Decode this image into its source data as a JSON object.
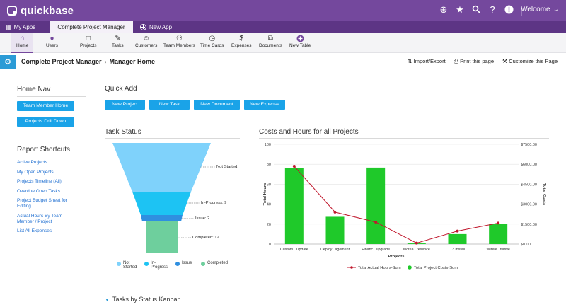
{
  "app": {
    "logo_text": "quickbase",
    "welcome": "Welcome"
  },
  "tabs": {
    "myapps": "My Apps",
    "active": "Complete Project Manager",
    "newapp": "New App"
  },
  "nav": [
    {
      "label": "Home",
      "icon": "home-icon"
    },
    {
      "label": "Users",
      "icon": "users-icon"
    },
    {
      "label": "Projects",
      "icon": "folder-icon"
    },
    {
      "label": "Tasks",
      "icon": "tasks-icon"
    },
    {
      "label": "Customers",
      "icon": "smile-icon"
    },
    {
      "label": "Team Members",
      "icon": "team-icon"
    },
    {
      "label": "Time Cards",
      "icon": "timecard-icon"
    },
    {
      "label": "Expenses",
      "icon": "dollar-icon"
    },
    {
      "label": "Documents",
      "icon": "documents-icon"
    },
    {
      "label": "New Table",
      "icon": "plus-icon"
    }
  ],
  "titlebar": {
    "app": "Complete Project Manager",
    "page": "Manager Home",
    "import_export": "Import/Export",
    "print": "Print this page",
    "customize": "Customize this Page"
  },
  "home_nav": {
    "title": "Home Nav",
    "buttons": [
      "Team Member Home",
      "Projects Drill Down"
    ]
  },
  "report_shortcuts": {
    "title": "Report Shortcuts",
    "links": [
      "Active Projects",
      "My Open Projects",
      "Projects Timeline (All)",
      "Overdue Open Tasks",
      "Project Budget Sheet for Editing",
      "Actual Hours By Team Member / Project",
      "List All Expenses"
    ]
  },
  "quick_add": {
    "title": "Quick Add",
    "buttons": [
      "New Project",
      "New Task",
      "New Document",
      "New Expense"
    ]
  },
  "task_status": {
    "title": "Task Status",
    "labels": [
      "Not Started:",
      "In-Progress: 9",
      "Issue: 2",
      "Completed: 12"
    ],
    "legend": [
      "Not Started",
      "In-Progress",
      "Issue",
      "Completed"
    ],
    "colors": [
      "#7fd2fb",
      "#1dc3f3",
      "#2f8fe0",
      "#6ecf9d"
    ]
  },
  "chart_data": {
    "type": "bar",
    "title": "Costs and Hours for all Projects",
    "categories": [
      "Custom...Update",
      "Deploy...agement",
      "Financ...upgrade",
      "Increa...resence",
      "T3 install",
      "Wirele...tiative"
    ],
    "xlabel": "Projects",
    "ylabel": "Total Hours",
    "ylabel_right": "Total Costs",
    "ylim": [
      0,
      100
    ],
    "ylim_right": [
      0,
      7500
    ],
    "yticks": [
      "0",
      "20",
      "40",
      "60",
      "80",
      "100"
    ],
    "yticks_right": [
      "$0.00",
      "$1500.00",
      "$3000.00",
      "$4500.00",
      "$6000.00",
      "$7500.00"
    ],
    "series": [
      {
        "name": "Total Project Costs-Sum",
        "type": "bar",
        "axis": "right",
        "color": "#1fc92a",
        "values": [
          5700,
          2050,
          5750,
          50,
          750,
          1500
        ]
      },
      {
        "name": "Total Actual Hours-Sum",
        "type": "line",
        "axis": "left",
        "color": "#c0172c",
        "values": [
          78,
          32,
          22,
          1,
          13,
          21
        ]
      }
    ],
    "grid": true,
    "legend": "bottom"
  },
  "kanban": {
    "title": "Tasks by Status Kanban"
  }
}
